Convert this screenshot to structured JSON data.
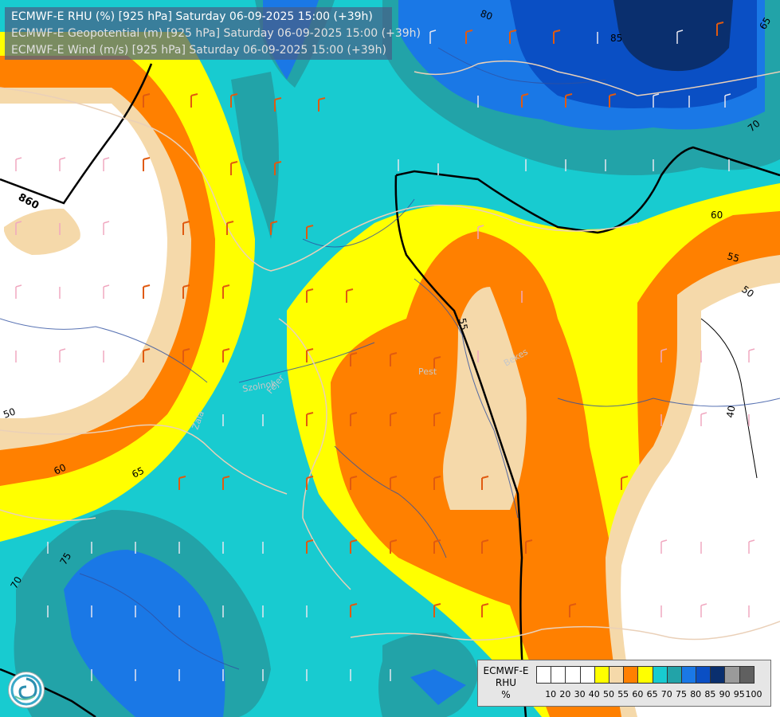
{
  "title": {
    "line1": "ECMWF-E RHU (%) [925 hPa] Saturday 06-09-2025 15:00 (+39h)",
    "line2": "ECMWF-E Geopotential (m) [925 hPa] Saturday 06-09-2025 15:00 (+39h)",
    "line3": "ECMWF-E Wind (m/s) [925 hPa] Saturday 06-09-2025 15:00 (+39h)"
  },
  "legend": {
    "model": "ECMWF-E",
    "variable": "RHU",
    "unit": "%",
    "colors": [
      "#ffffff",
      "#ffffff",
      "#ffffff",
      "#ffffff",
      "#ffff00",
      "#f5d9aa",
      "#ff8000",
      "#ffff00",
      "#18cbd0",
      "#22a3a8",
      "#1a78e6",
      "#0a4fc4",
      "#0a2f6e",
      "#9a9a9a",
      "#606060"
    ],
    "ticks": [
      "10",
      "20",
      "30",
      "40",
      "50",
      "55",
      "60",
      "65",
      "70",
      "75",
      "80",
      "85",
      "90",
      "95",
      "100"
    ]
  },
  "contour_labels": {
    "geopotential": [
      "860",
      "80",
      "85"
    ],
    "rhu": [
      "65",
      "70",
      "60",
      "55",
      "50",
      "40",
      "50",
      "60",
      "65",
      "70",
      "75",
      "60",
      "55",
      "50"
    ]
  },
  "place_labels": [
    "Pest",
    "Bekes",
    "Fejer",
    "Szolnok",
    "Zala"
  ],
  "colors": {
    "white": "#ffffff",
    "peach": "#f5d9aa",
    "orange": "#ff8000",
    "yellow": "#ffff00",
    "cyan": "#18cbd0",
    "teal": "#22a3a8",
    "blue": "#1a78e6",
    "darkblue": "#0a2f6e",
    "rivers": "#3050a0",
    "borders": "#e8c8b0"
  }
}
